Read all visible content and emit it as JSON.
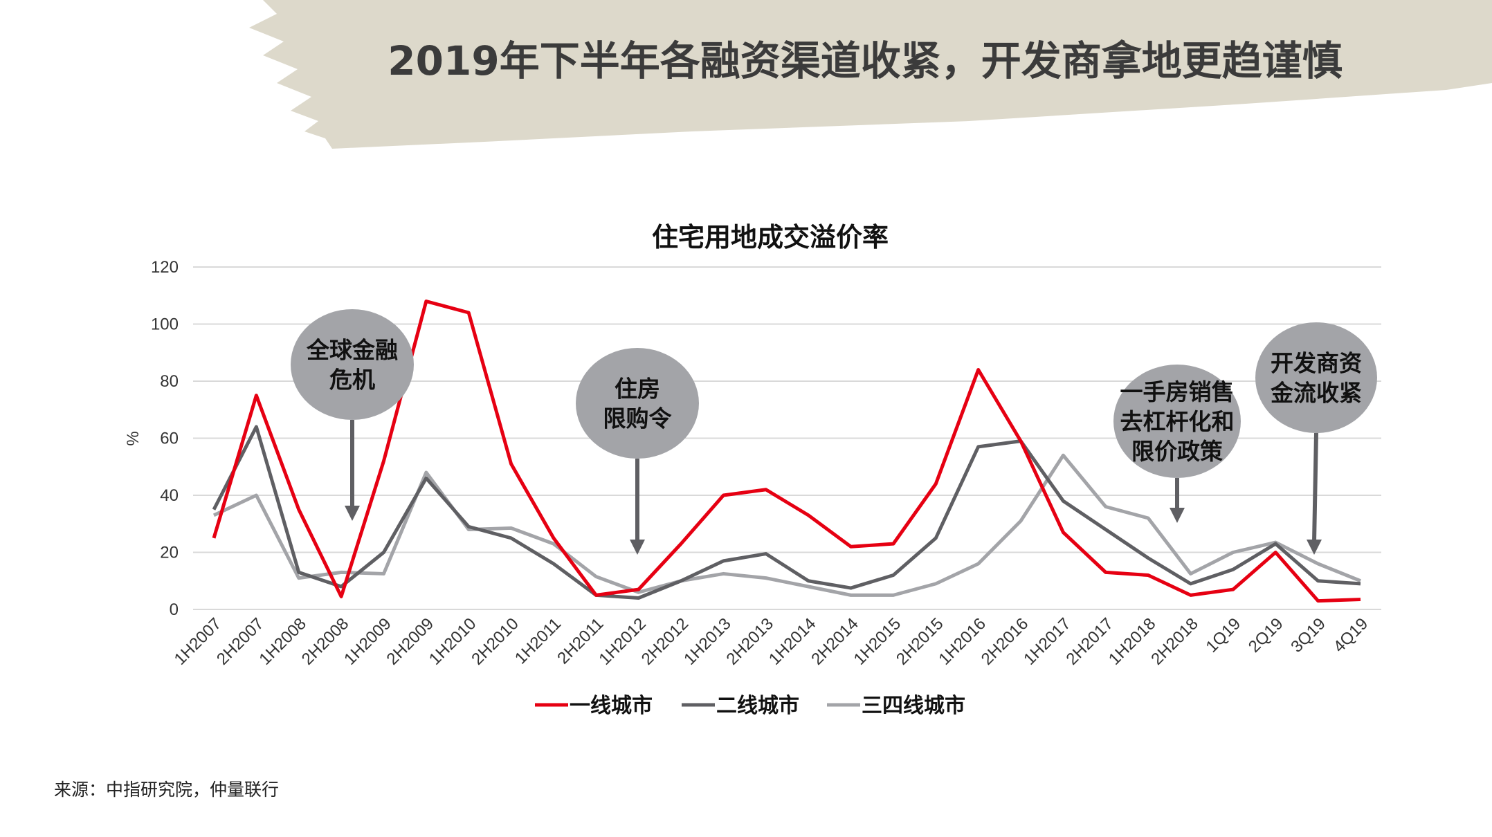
{
  "header": {
    "title": "2019年下半年各融资渠道收紧，开发商拿地更趋谨慎"
  },
  "source": "来源：中指研究院，仲量联行",
  "colors": {
    "series1": "#e60012",
    "series2": "#5f5f63",
    "series3": "#a3a4a8",
    "banner": "#ddd9cb",
    "bubble": "#a3a4a8",
    "arrow": "#5f5f63"
  },
  "annotations": [
    {
      "lines": [
        "全球金融",
        "危机"
      ],
      "at": "2H2008"
    },
    {
      "lines": [
        "住房",
        "限购令"
      ],
      "at": "1H2012"
    },
    {
      "lines": [
        "一手房销售",
        "去杠杆化和",
        "限价政策"
      ],
      "at": "2H2018"
    },
    {
      "lines": [
        "开发商资",
        "金流收紧"
      ],
      "at": "3Q19"
    }
  ],
  "chart_data": {
    "type": "line",
    "title": "住宅用地成交溢价率",
    "xlabel": "",
    "ylabel": "%",
    "ylim": [
      0,
      120
    ],
    "yticks": [
      0,
      20,
      40,
      60,
      80,
      100,
      120
    ],
    "grid": true,
    "legend_position": "bottom",
    "categories": [
      "1H2007",
      "2H2007",
      "1H2008",
      "2H2008",
      "1H2009",
      "2H2009",
      "1H2010",
      "2H2010",
      "1H2011",
      "2H2011",
      "1H2012",
      "2H2012",
      "1H2013",
      "2H2013",
      "1H2014",
      "2H2014",
      "1H2015",
      "2H2015",
      "1H2016",
      "2H2016",
      "1H2017",
      "2H2017",
      "1H2018",
      "2H2018",
      "1Q19",
      "2Q19",
      "3Q19",
      "4Q19"
    ],
    "series": [
      {
        "name": "一线城市",
        "values": [
          25,
          75,
          35,
          4.5,
          52,
          108,
          104,
          51,
          25,
          5,
          7,
          23,
          40,
          42,
          33,
          22,
          23,
          44,
          84,
          59,
          27,
          13,
          12,
          5,
          7,
          20,
          3,
          3.5
        ]
      },
      {
        "name": "二线城市",
        "values": [
          35,
          64,
          13,
          8,
          20,
          46,
          29,
          25,
          16,
          5,
          4,
          10,
          17,
          19.5,
          10,
          7.5,
          12,
          25,
          57,
          59,
          38,
          28,
          18,
          9,
          14,
          23,
          10,
          9
        ]
      },
      {
        "name": "三四线城市",
        "values": [
          33,
          40,
          11,
          13,
          12.5,
          48,
          28,
          28.5,
          23,
          11.5,
          6,
          10,
          12.5,
          11,
          8,
          5,
          5,
          9,
          16,
          31,
          54,
          36,
          32,
          12.5,
          20,
          23.5,
          16,
          10
        ]
      }
    ]
  }
}
